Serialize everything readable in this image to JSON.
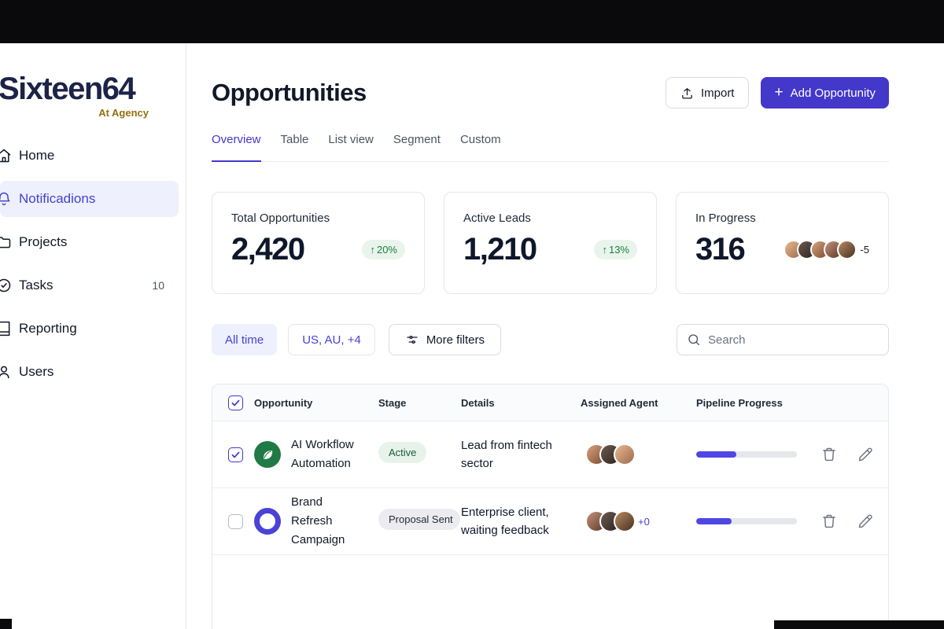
{
  "sidebar": {
    "logo": "Sixteen64",
    "tagline": "At Agency",
    "items": [
      {
        "label": "Home"
      },
      {
        "label": "Notificadions"
      },
      {
        "label": "Projects"
      },
      {
        "label": "Tasks",
        "badge": "10"
      },
      {
        "label": "Reporting"
      },
      {
        "label": "Users"
      }
    ]
  },
  "header": {
    "title": "Opportunities",
    "import_label": "Import",
    "add_label": "Add Opportunity"
  },
  "icons": {
    "plus": "+",
    "trend_up": "↑"
  },
  "tabs": [
    {
      "label": "Overview",
      "active": true
    },
    {
      "label": "Table",
      "active": false
    },
    {
      "label": "List view",
      "active": false
    },
    {
      "label": "Segment",
      "active": false
    },
    {
      "label": "Custom",
      "active": false
    }
  ],
  "stats": [
    {
      "label": "Total Opportunities",
      "value": "2,420",
      "trend": "20%",
      "trend_direction": "up"
    },
    {
      "label": "Active Leads",
      "value": "1,210",
      "trend": "13%",
      "trend_direction": "up"
    },
    {
      "label": "In Progress",
      "value": "316",
      "avatars": 5,
      "overflow": "-5"
    }
  ],
  "filters": {
    "time": "All time",
    "region": "US, AU, +4",
    "more": "More filters",
    "search_placeholder": "Search"
  },
  "table": {
    "header_checked": true,
    "headers": [
      "Opportunity",
      "Stage",
      "Details",
      "Assigned Agent",
      "Pipeline Progress"
    ],
    "rows": [
      {
        "name": "AI Workflow Automation",
        "stage": "Active",
        "stage_variant": "success",
        "details": "Lead from fintech sector",
        "agents": 3,
        "agents_overflow": "",
        "progress": 40,
        "checked": true
      },
      {
        "name": "Brand Refresh Campaign",
        "stage": "Proposal Sent",
        "stage_variant": "neutral",
        "details": "Enterprise client, waiting feedback",
        "agents": 3,
        "agents_overflow": "+0",
        "progress": 35,
        "checked": false
      }
    ]
  },
  "colors": {
    "accent": "#4338CA",
    "active_nav_bg": "#eef0fd",
    "success_pill_bg": "#e9f4ec",
    "success_pill_text": "#1a7f3c",
    "progress_fill": "#4f46e5",
    "logo_navy": "#1c2347",
    "tagline_gold": "#92700c"
  }
}
